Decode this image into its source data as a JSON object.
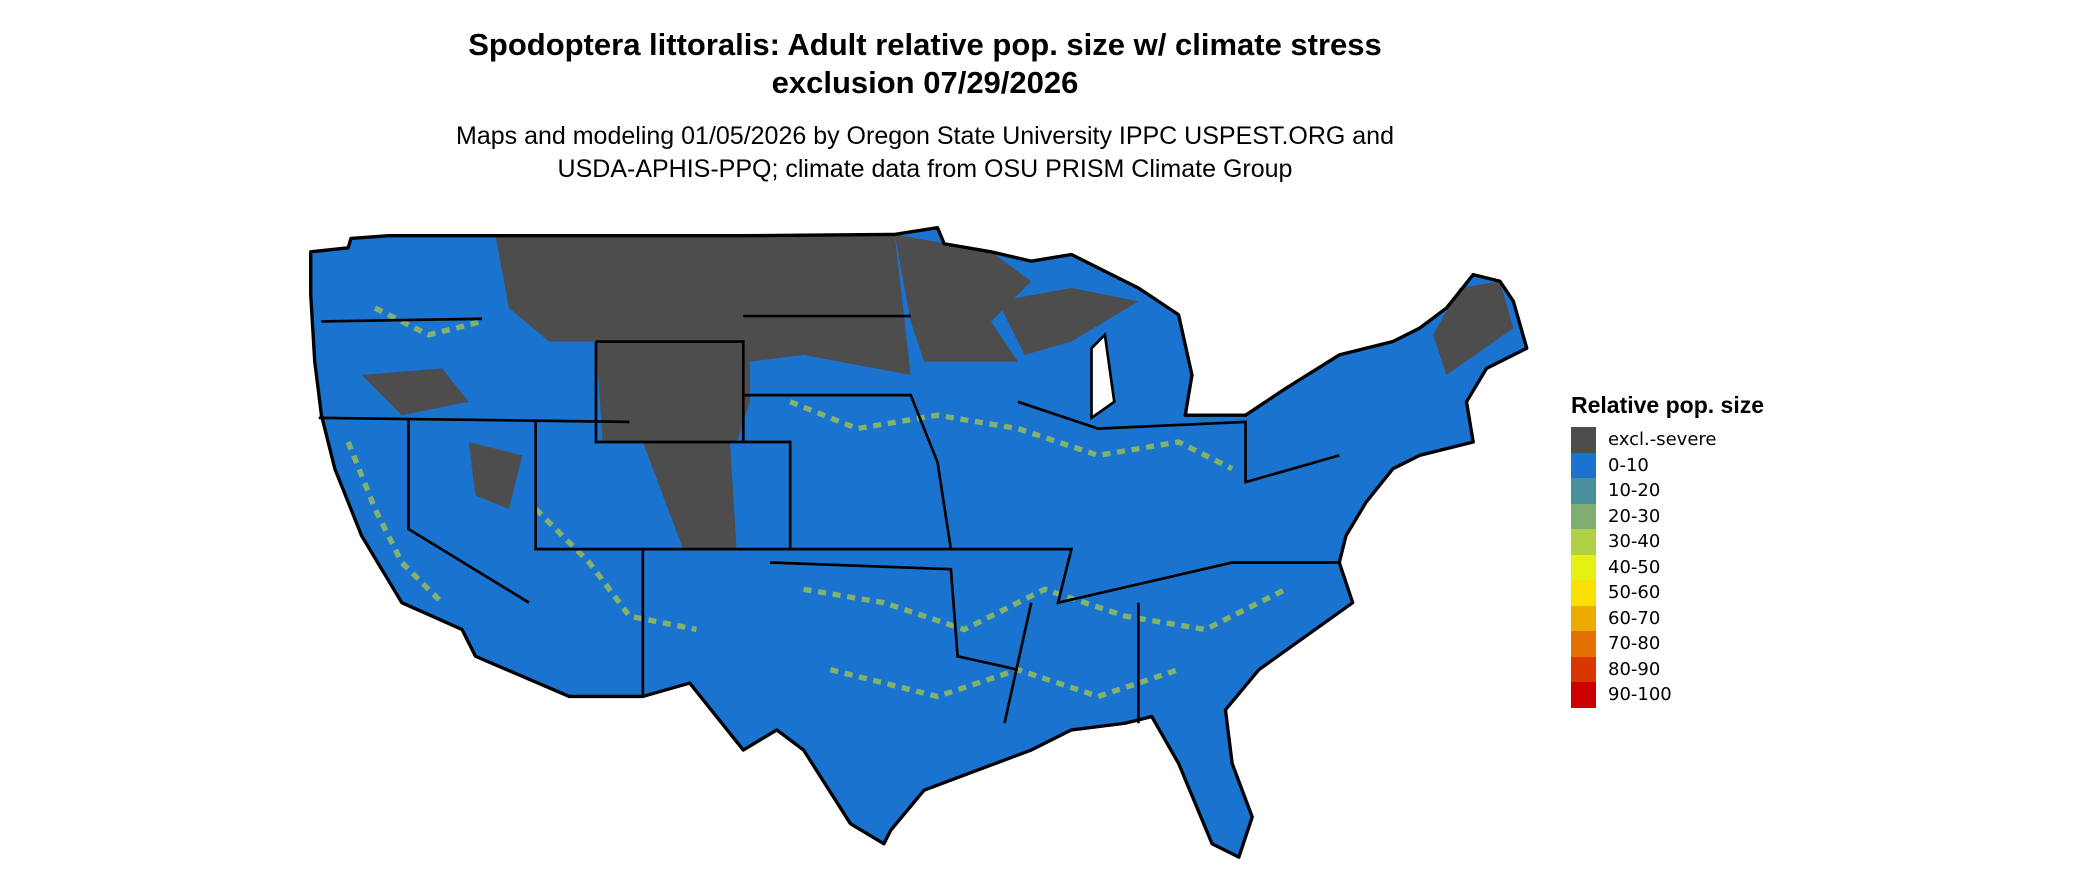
{
  "title": {
    "line1": "Spodoptera littoralis: Adult relative pop. size w/ climate stress",
    "line2": "exclusion 07/29/2026"
  },
  "subtitle": {
    "line1": "Maps and modeling 01/05/2026 by Oregon State University IPPC USPEST.ORG and",
    "line2": "USDA-APHIS-PPQ; climate data from OSU PRISM Climate Group"
  },
  "map": {
    "region": "Contiguous United States",
    "dominant_class": "0-10",
    "border_color": "#000000"
  },
  "legend": {
    "title": "Relative pop. size",
    "items": [
      {
        "label": "excl.-severe",
        "color": "#4d4d4d"
      },
      {
        "label": "0-10",
        "color": "#1a73cf"
      },
      {
        "label": "10-20",
        "color": "#48909b"
      },
      {
        "label": "20-30",
        "color": "#7fae72"
      },
      {
        "label": "30-40",
        "color": "#b3d046"
      },
      {
        "label": "40-50",
        "color": "#e5f014"
      },
      {
        "label": "50-60",
        "color": "#f8e000"
      },
      {
        "label": "60-70",
        "color": "#eeaa00"
      },
      {
        "label": "70-80",
        "color": "#e37000"
      },
      {
        "label": "80-90",
        "color": "#db3600"
      },
      {
        "label": "90-100",
        "color": "#cc0000"
      }
    ]
  }
}
